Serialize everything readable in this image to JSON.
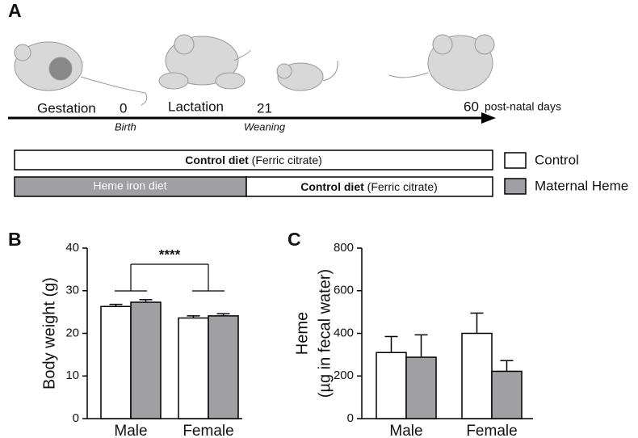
{
  "panel_a": {
    "label": "A",
    "timeline": {
      "gestation": "Gestation",
      "birth_day": "0",
      "birth": "Birth",
      "lactation": "Lactation",
      "weaning_day": "21",
      "weaning": "Weaning",
      "end_day": "60",
      "unit": "post-natal days"
    },
    "diet_rows": [
      [
        {
          "bold": "Control diet",
          "rest": "(Ferric citrate)"
        }
      ],
      [
        {
          "plain": "Heme iron diet"
        },
        {
          "bold": "Control diet",
          "rest": "(Ferric citrate)"
        }
      ]
    ],
    "legend": [
      "Control",
      "Maternal Heme"
    ]
  },
  "chart_data": [
    {
      "type": "bar",
      "panel_label": "B",
      "ylabel": "Body weight (g)",
      "categories": [
        "Male",
        "Female"
      ],
      "series": [
        {
          "name": "Control",
          "color": "#ffffff",
          "values": [
            26.3,
            23.6
          ],
          "errors": [
            0.5,
            0.5
          ]
        },
        {
          "name": "Maternal Heme",
          "color": "#a0a0a4",
          "values": [
            27.3,
            24.1
          ],
          "errors": [
            0.6,
            0.5
          ]
        }
      ],
      "ylim": [
        0,
        40
      ],
      "yticks": [
        0,
        10,
        20,
        30,
        40
      ],
      "annotation": "****"
    },
    {
      "type": "bar",
      "panel_label": "C",
      "ylabel": [
        "Heme",
        "(µg in fecal water)"
      ],
      "categories": [
        "Male",
        "Female"
      ],
      "series": [
        {
          "name": "Control",
          "color": "#ffffff",
          "values": [
            310,
            400
          ],
          "errors": [
            75,
            95
          ]
        },
        {
          "name": "Maternal Heme",
          "color": "#a0a0a4",
          "values": [
            288,
            222
          ],
          "errors": [
            105,
            50
          ]
        }
      ],
      "ylim": [
        0,
        800
      ],
      "yticks": [
        0,
        200,
        400,
        600,
        800
      ]
    }
  ]
}
